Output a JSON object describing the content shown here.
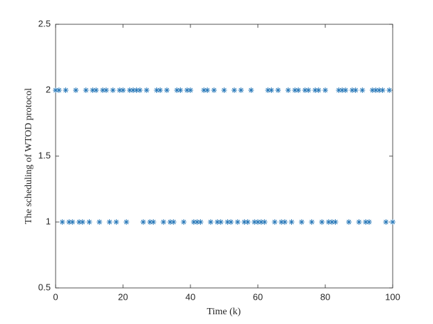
{
  "chart_data": {
    "type": "scatter",
    "xlabel": "Time (k)",
    "ylabel": "The scheduling of WTOD protocol",
    "x": [
      0,
      1,
      2,
      3,
      4,
      5,
      6,
      7,
      8,
      9,
      10,
      11,
      12,
      13,
      14,
      15,
      16,
      17,
      18,
      19,
      20,
      21,
      22,
      23,
      24,
      25,
      26,
      27,
      28,
      29,
      30,
      31,
      32,
      33,
      34,
      35,
      36,
      37,
      38,
      39,
      40,
      41,
      42,
      43,
      44,
      45,
      46,
      47,
      48,
      49,
      50,
      51,
      52,
      53,
      54,
      55,
      56,
      57,
      58,
      59,
      60,
      61,
      62,
      63,
      64,
      65,
      66,
      67,
      68,
      69,
      70,
      71,
      72,
      73,
      74,
      75,
      76,
      77,
      78,
      79,
      80,
      81,
      82,
      83,
      84,
      85,
      86,
      87,
      88,
      89,
      90,
      91,
      92,
      93,
      94,
      95,
      96,
      97,
      98,
      99,
      100
    ],
    "values": [
      2,
      2,
      1,
      2,
      1,
      1,
      2,
      1,
      1,
      2,
      1,
      2,
      2,
      1,
      2,
      2,
      1,
      2,
      1,
      2,
      2,
      1,
      2,
      2,
      2,
      2,
      1,
      2,
      1,
      1,
      2,
      2,
      1,
      2,
      1,
      1,
      2,
      2,
      1,
      2,
      2,
      1,
      1,
      1,
      2,
      2,
      1,
      2,
      1,
      1,
      2,
      1,
      1,
      2,
      1,
      2,
      1,
      1,
      2,
      1,
      1,
      1,
      1,
      2,
      2,
      1,
      2,
      1,
      1,
      2,
      1,
      2,
      2,
      1,
      2,
      2,
      1,
      2,
      2,
      1,
      2,
      1,
      1,
      1,
      2,
      2,
      2,
      1,
      2,
      2,
      1,
      2,
      1,
      1,
      2,
      2,
      2,
      2,
      1,
      2,
      1
    ],
    "color": "#2878b8",
    "xlim": [
      0,
      100
    ],
    "xticks": [
      0,
      20,
      40,
      60,
      80,
      100
    ],
    "ylim": [
      0.5,
      2.5
    ],
    "yticks": [
      0.5,
      1,
      1.5,
      2,
      2.5
    ]
  }
}
